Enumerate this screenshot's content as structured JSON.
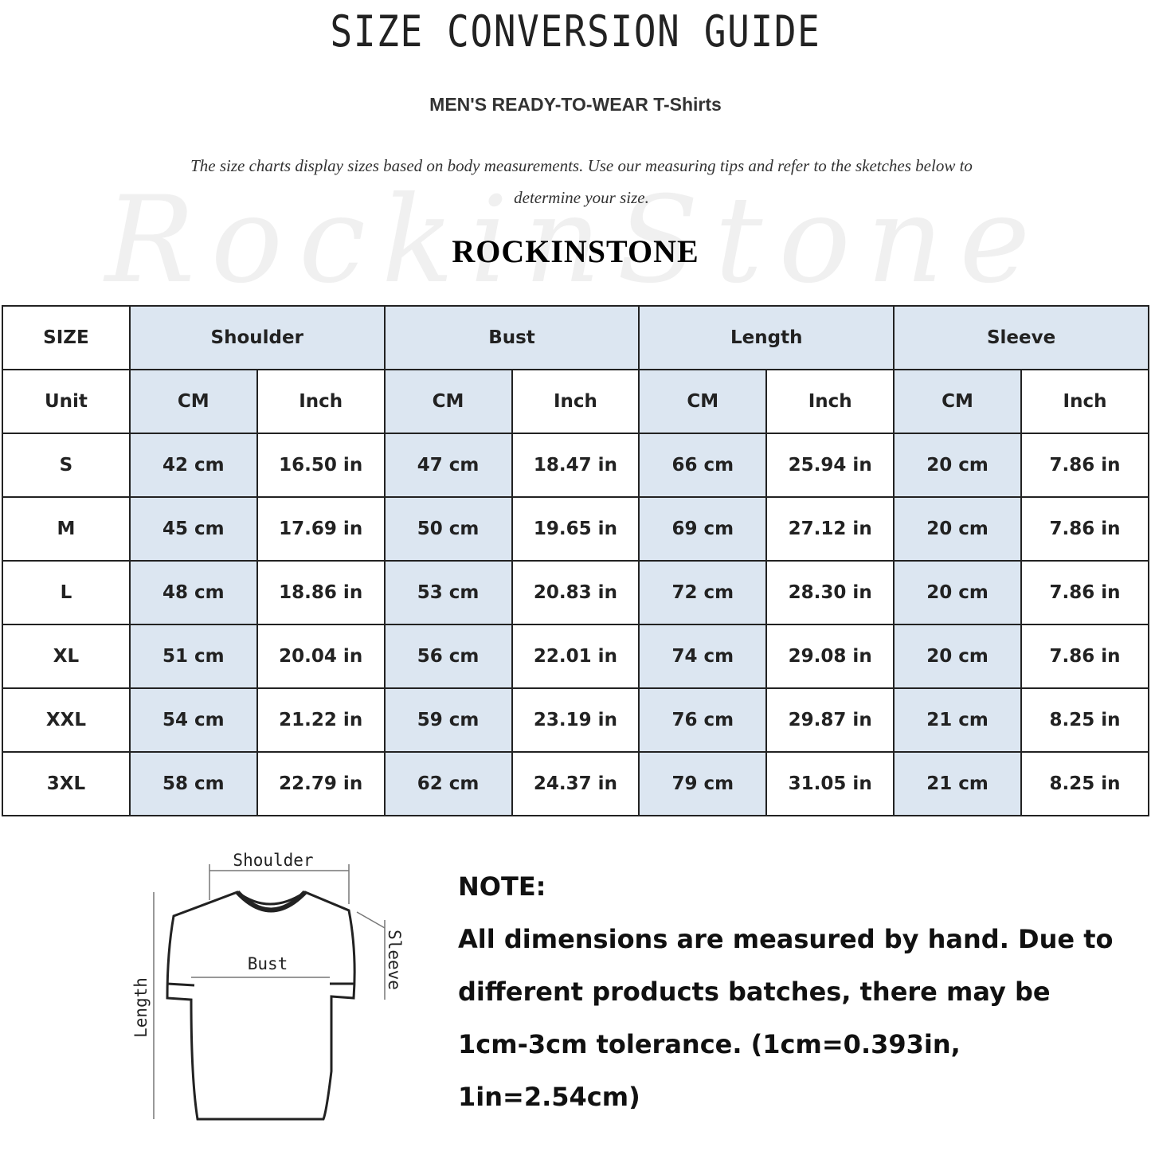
{
  "header": {
    "title": "SIZE CONVERSION GUIDE",
    "subtitle": "MEN'S READY-TO-WEAR T-Shirts",
    "description": "The size charts display sizes based on body measurements. Use our measuring tips and refer to the sketches below to determine your size.",
    "brand": "ROCKINSTONE",
    "watermark": "RockinStone"
  },
  "colors": {
    "header_fill": "#dce6f1",
    "border": "#222222"
  },
  "table": {
    "size_label": "SIZE",
    "unit_label": "Unit",
    "groups": [
      "Shoulder",
      "Bust",
      "Length",
      "Sleeve"
    ],
    "units": [
      "CM",
      "Inch",
      "CM",
      "Inch",
      "CM",
      "Inch",
      "CM",
      "Inch"
    ],
    "rows": [
      {
        "size": "S",
        "values": [
          "42 cm",
          "16.50 in",
          "47 cm",
          "18.47 in",
          "66 cm",
          "25.94 in",
          "20 cm",
          "7.86 in"
        ]
      },
      {
        "size": "M",
        "values": [
          "45 cm",
          "17.69 in",
          "50 cm",
          "19.65 in",
          "69 cm",
          "27.12 in",
          "20 cm",
          "7.86 in"
        ]
      },
      {
        "size": "L",
        "values": [
          "48 cm",
          "18.86 in",
          "53 cm",
          "20.83 in",
          "72 cm",
          "28.30 in",
          "20 cm",
          "7.86 in"
        ]
      },
      {
        "size": "XL",
        "values": [
          "51 cm",
          "20.04 in",
          "56 cm",
          "22.01 in",
          "74 cm",
          "29.08 in",
          "20 cm",
          "7.86 in"
        ]
      },
      {
        "size": "XXL",
        "values": [
          "54 cm",
          "21.22 in",
          "59 cm",
          "23.19 in",
          "76 cm",
          "29.87 in",
          "21 cm",
          "8.25 in"
        ]
      },
      {
        "size": "3XL",
        "values": [
          "58 cm",
          "22.79 in",
          "62 cm",
          "24.37 in",
          "79 cm",
          "31.05 in",
          "21 cm",
          "8.25 in"
        ]
      }
    ]
  },
  "sketch": {
    "shoulder": "Shoulder",
    "bust": "Bust",
    "length": "Length",
    "sleeve": "Sleeve"
  },
  "note": {
    "heading": "NOTE:",
    "lines": [
      "All dimensions are measured by hand. Due to",
      "different products batches, there may be",
      "1cm-3cm tolerance. (1cm=0.393in, 1in=2.54cm)"
    ]
  }
}
